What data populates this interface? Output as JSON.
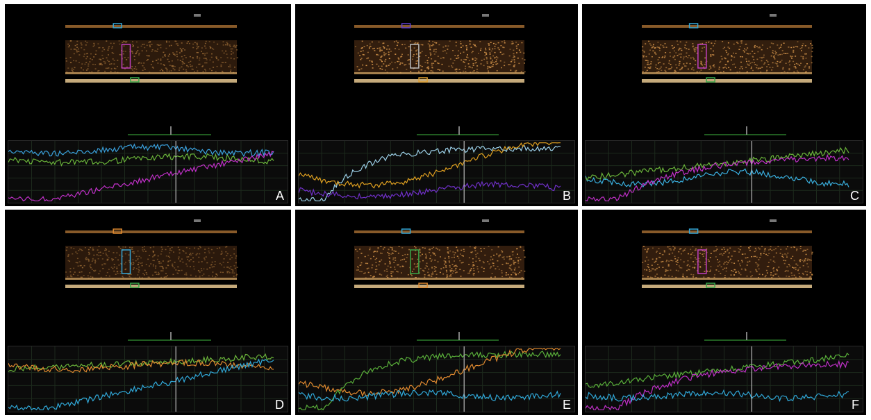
{
  "panels": [
    {
      "letter": "A",
      "bright": 0.55,
      "boxes": [
        {
          "color": "#35a8d8",
          "region": "top"
        },
        {
          "color": "#c040c0",
          "region": "mid"
        },
        {
          "color": "#3aa84a",
          "region": "bottom"
        }
      ],
      "curves": [
        {
          "color": "#3aa0dc",
          "seed": 1,
          "kind": "flat-high"
        },
        {
          "color": "#6ab43a",
          "seed": 2,
          "kind": "flat-mid"
        },
        {
          "color": "#c030c8",
          "seed": 3,
          "kind": "rise-slow"
        }
      ]
    },
    {
      "letter": "B",
      "bright": 0.95,
      "boxes": [
        {
          "color": "#6040d0",
          "region": "top"
        },
        {
          "color": "#bbbbbb",
          "region": "mid"
        },
        {
          "color": "#e0a030",
          "region": "bottom"
        }
      ],
      "curves": [
        {
          "color": "#9cd0e8",
          "seed": 4,
          "kind": "rise-fast"
        },
        {
          "color": "#e0a020",
          "seed": 5,
          "kind": "noisy-dip"
        },
        {
          "color": "#7030c8",
          "seed": 6,
          "kind": "bump-low"
        }
      ]
    },
    {
      "letter": "C",
      "bright": 0.9,
      "boxes": [
        {
          "color": "#35a8d8",
          "region": "top"
        },
        {
          "color": "#c040c0",
          "region": "mid"
        },
        {
          "color": "#3aa84a",
          "region": "bottom"
        }
      ],
      "curves": [
        {
          "color": "#3ab0e0",
          "seed": 7,
          "kind": "fall-mid"
        },
        {
          "color": "#6ab43a",
          "seed": 8,
          "kind": "rise-noisy"
        },
        {
          "color": "#c030c8",
          "seed": 9,
          "kind": "rise-fast2"
        }
      ]
    },
    {
      "letter": "D",
      "bright": 0.5,
      "boxes": [
        {
          "color": "#e08a30",
          "region": "top"
        },
        {
          "color": "#35a8d8",
          "region": "mid"
        },
        {
          "color": "#3aa84a",
          "region": "bottom"
        }
      ],
      "curves": [
        {
          "color": "#6ab43a",
          "seed": 10,
          "kind": "flat-high-noisy"
        },
        {
          "color": "#e08a30",
          "seed": 11,
          "kind": "flat-mid"
        },
        {
          "color": "#30a8d8",
          "seed": 12,
          "kind": "rise-slow"
        }
      ]
    },
    {
      "letter": "E",
      "bright": 0.85,
      "boxes": [
        {
          "color": "#35a8d8",
          "region": "top"
        },
        {
          "color": "#3aa84a",
          "region": "mid"
        },
        {
          "color": "#e08a30",
          "region": "bottom"
        }
      ],
      "curves": [
        {
          "color": "#5ab03a",
          "seed": 13,
          "kind": "rise-fast"
        },
        {
          "color": "#e08a30",
          "seed": 14,
          "kind": "noisy-dip"
        },
        {
          "color": "#30a8d8",
          "seed": 15,
          "kind": "flat-low"
        }
      ]
    },
    {
      "letter": "F",
      "bright": 0.85,
      "boxes": [
        {
          "color": "#35a8d8",
          "region": "top"
        },
        {
          "color": "#c040c0",
          "region": "mid"
        },
        {
          "color": "#3aa84a",
          "region": "bottom"
        }
      ],
      "curves": [
        {
          "color": "#5ab03a",
          "seed": 16,
          "kind": "rise-noisy"
        },
        {
          "color": "#c030c8",
          "seed": 17,
          "kind": "rise-fast2"
        },
        {
          "color": "#30a8d8",
          "seed": 18,
          "kind": "flat-low"
        }
      ]
    }
  ]
}
